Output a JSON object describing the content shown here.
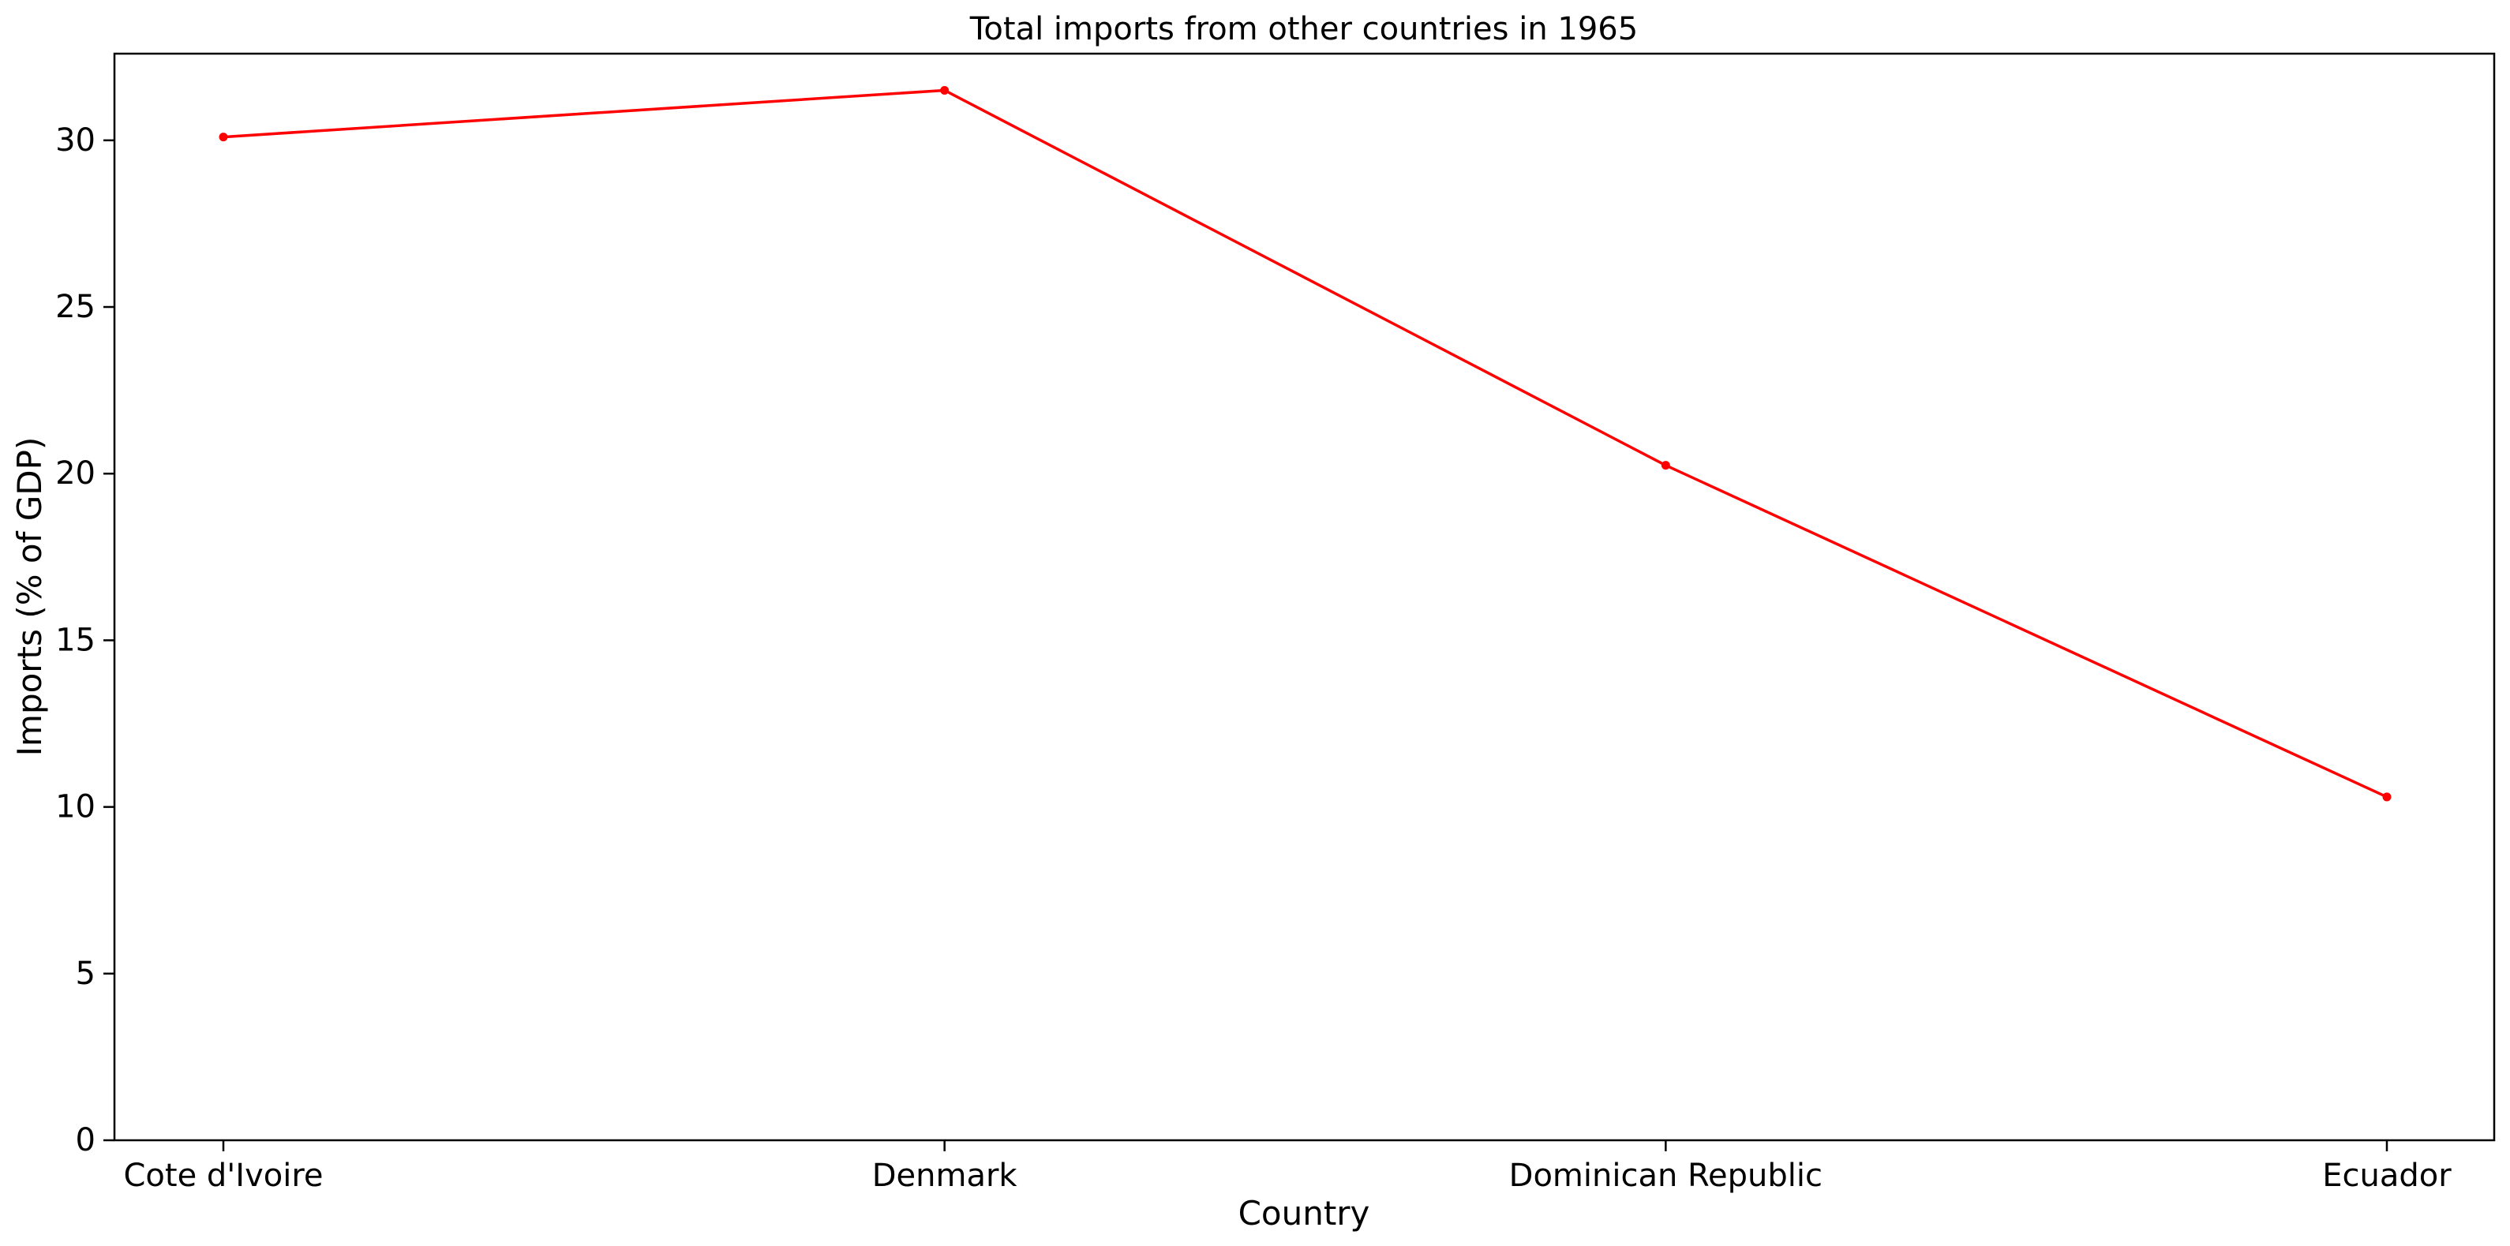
{
  "chart_data": {
    "type": "line",
    "title": "Total imports from other countries in 1965",
    "xlabel": "Country",
    "ylabel": "Imports (% of GDP)",
    "categories": [
      "Cote d'Ivoire",
      "Denmark",
      "Dominican Republic",
      "Ecuador"
    ],
    "series": [
      {
        "values": [
          30.1,
          31.5,
          20.25,
          10.3
        ],
        "color": "#ff0000",
        "marker": "circle"
      }
    ],
    "ylim": [
      0,
      32.6
    ],
    "yticks": [
      0,
      5,
      10,
      15,
      20,
      25,
      30
    ],
    "grid": false,
    "legend": "none"
  }
}
